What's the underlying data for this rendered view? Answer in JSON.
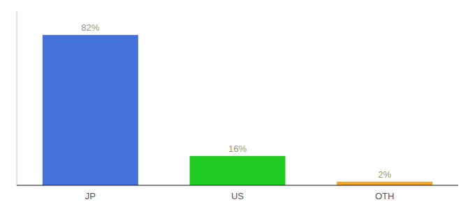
{
  "chart_data": {
    "type": "bar",
    "categories": [
      "JP",
      "US",
      "OTH"
    ],
    "values": [
      82,
      16,
      2
    ],
    "value_labels": [
      "82%",
      "16%",
      "2%"
    ],
    "colors": [
      "#4472db",
      "#22cc22",
      "#f5a623"
    ],
    "ylim": [
      0,
      95
    ],
    "data_labels": true,
    "tick_labels": "x",
    "grid": false
  }
}
